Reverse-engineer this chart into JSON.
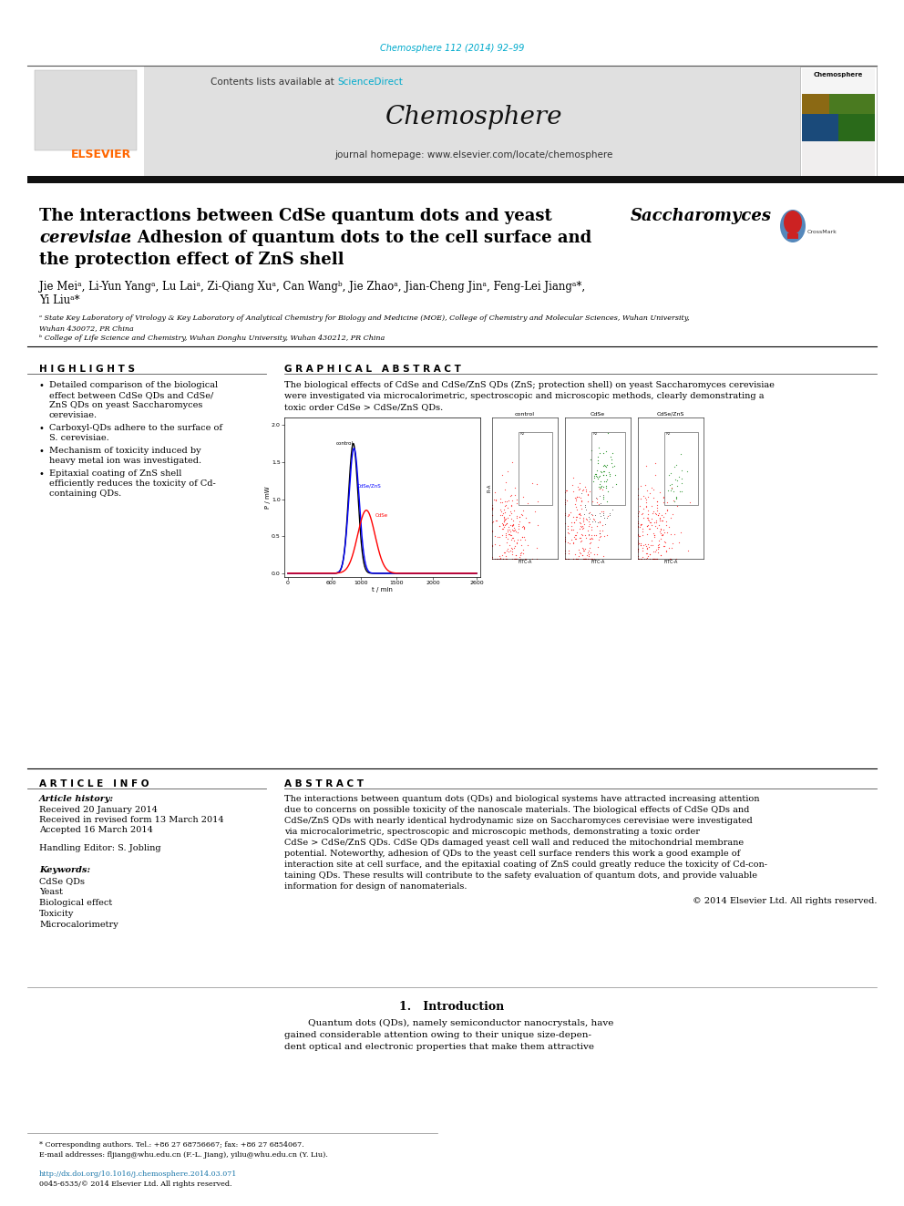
{
  "journal_ref": "Chemosphere 112 (2014) 92–99",
  "journal_ref_color": "#00aacc",
  "sciencedirect_color": "#00aacc",
  "journal_name": "Chemosphere",
  "elsevier_orange": "#ff6600",
  "header_bg": "#e0e0e0",
  "bg_color": "#ffffff",
  "black_bar_color": "#111111",
  "title_line1_regular": "The interactions between CdSe quantum dots and yeast ",
  "title_line1_italic": "Saccharomyces",
  "title_line2_italic": "cerevisiae",
  "title_line2_regular": ": Adhesion of quantum dots to the cell surface and",
  "title_line3": "the protection effect of ZnS shell",
  "authors_line1": "Jie Mei",
  "authors_line2": "Yi Liu",
  "affil_a_line1": "a State Key Laboratory of Virology & Key Laboratory of Analytical Chemistry for Biology and Medicine (MOE), College of Chemistry and Molecular Sciences, Wuhan University,",
  "affil_a_line2": "Wuhan 430072, PR China",
  "affil_b": "b College of Life Science and Chemistry, Wuhan Donghu University, Wuhan 430212, PR China",
  "highlights_title": "H I G H L I G H T S",
  "highlights": [
    "Detailed comparison of the biological\neffect between CdSe QDs and CdSe/\nZnS QDs on yeast Saccharomyces\ncerevisiae.",
    "Carboxyl-QDs adhere to the surface of\nS. cerevisiae.",
    "Mechanism of toxicity induced by\nheavy metal ion was investigated.",
    "Epitaxial coating of ZnS shell\nefficiently reduces the toxicity of Cd-\ncontaining QDs."
  ],
  "graphical_abstract_title": "G R A P H I C A L   A B S T R A C T",
  "graphical_abstract_text": "The biological effects of CdSe and CdSe/ZnS QDs (ZnS; protection shell) on yeast Saccharomyces cerevisiae\nwere investigated via microcalorimetric, spectroscopic and microscopic methods, clearly demonstrating a\ntoxic order CdSe > CdSe/ZnS QDs.",
  "article_info_title": "A R T I C L E   I N F O",
  "article_history_label": "Article history:",
  "received1": "Received 20 January 2014",
  "received2": "Received in revised form 13 March 2014",
  "accepted": "Accepted 16 March 2014",
  "handling_editor": "Handling Editor: S. Jobling",
  "keywords_label": "Keywords:",
  "keywords": [
    "CdSe QDs",
    "Yeast",
    "Biological effect",
    "Toxicity",
    "Microcalorimetry"
  ],
  "abstract_title": "A B S T R A C T",
  "abstract_text": "The interactions between quantum dots (QDs) and biological systems have attracted increasing attention\ndue to concerns on possible toxicity of the nanoscale materials. The biological effects of CdSe QDs and\nCdSe/ZnS QDs with nearly identical hydrodynamic size on Saccharomyces cerevisiae were investigated\nvia microcalorimetric, spectroscopic and microscopic methods, demonstrating a toxic order\nCdSe > CdSe/ZnS QDs. CdSe QDs damaged yeast cell wall and reduced the mitochondrial membrane\npotential. Noteworthy, adhesion of QDs to the yeast cell surface renders this work a good example of\ninteraction site at cell surface, and the epitaxial coating of ZnS could greatly reduce the toxicity of Cd-con-\ntaining QDs. These results will contribute to the safety evaluation of quantum dots, and provide valuable\ninformation for design of nanomaterials.",
  "copyright": "© 2014 Elsevier Ltd. All rights reserved.",
  "intro_title": "1.   Introduction",
  "intro_text": "        Quantum dots (QDs), namely semiconductor nanocrystals, have\ngained considerable attention owing to their unique size-depen-\ndent optical and electronic properties that make them attractive",
  "footer_note": "* Corresponding authors. Tel.: +86 27 68756667; fax: +86 27 6854067.",
  "footer_email": "E-mail addresses: fljiang@whu.edu.cn (F.-L. Jiang), yiliu@whu.edu.cn (Y. Liu).",
  "footer_doi": "http://dx.doi.org/10.1016/j.chemosphere.2014.03.071",
  "footer_issn": "0045-6535/© 2014 Elsevier Ltd. All rights reserved."
}
